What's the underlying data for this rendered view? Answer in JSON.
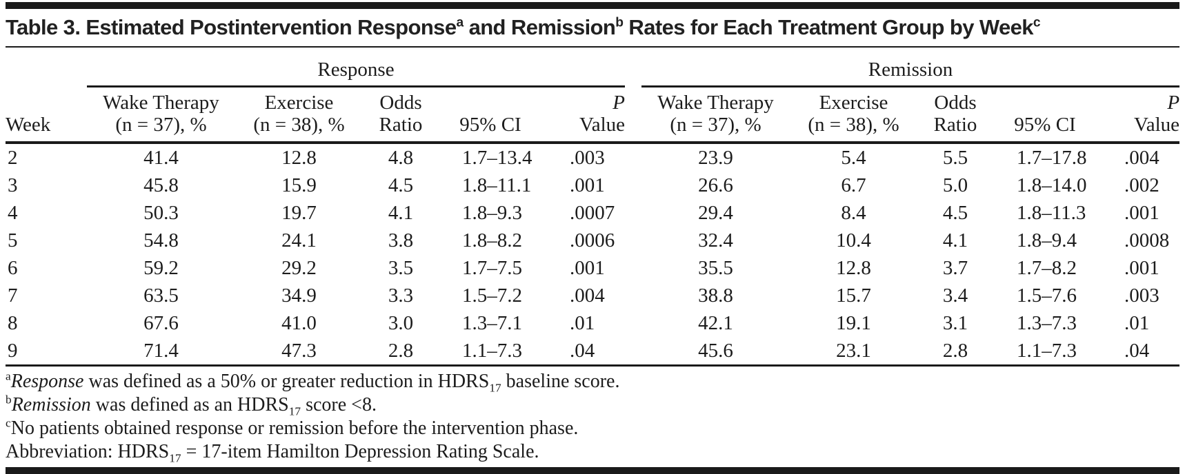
{
  "title": {
    "part1": "Table 3. Estimated Postintervention Response",
    "sup1": "a",
    "part2": " and Remission",
    "sup2": "b",
    "part3": " Rates for Each Treatment Group by Week",
    "sup3": "c"
  },
  "table": {
    "spanners": {
      "response": "Response",
      "remission": "Remission"
    },
    "week_label": "Week",
    "subheaders": {
      "wake_line1": "Wake Therapy",
      "wake_line2": "(n = 37), %",
      "exercise_line1": "Exercise",
      "exercise_line2": "(n = 38), %",
      "odds_line1": "Odds",
      "odds_line2": "Ratio",
      "ci": "95% CI",
      "p_line1": "P",
      "p_line2": "Value"
    },
    "rows": [
      [
        "2",
        "41.4",
        "12.8",
        "4.8",
        "1.7–13.4",
        ".003",
        "23.9",
        "5.4",
        "5.5",
        "1.7–17.8",
        ".004"
      ],
      [
        "3",
        "45.8",
        "15.9",
        "4.5",
        "1.8–11.1",
        ".001",
        "26.6",
        "6.7",
        "5.0",
        "1.8–14.0",
        ".002"
      ],
      [
        "4",
        "50.3",
        "19.7",
        "4.1",
        "1.8–9.3",
        ".0007",
        "29.4",
        "8.4",
        "4.5",
        "1.8–11.3",
        ".001"
      ],
      [
        "5",
        "54.8",
        "24.1",
        "3.8",
        "1.8–8.2",
        ".0006",
        "32.4",
        "10.4",
        "4.1",
        "1.8–9.4",
        ".0008"
      ],
      [
        "6",
        "59.2",
        "29.2",
        "3.5",
        "1.7–7.5",
        ".001",
        "35.5",
        "12.8",
        "3.7",
        "1.7–8.2",
        ".001"
      ],
      [
        "7",
        "63.5",
        "34.9",
        "3.3",
        "1.5–7.2",
        ".004",
        "38.8",
        "15.7",
        "3.4",
        "1.5–7.6",
        ".003"
      ],
      [
        "8",
        "67.6",
        "41.0",
        "3.0",
        "1.3–7.1",
        ".01",
        "42.1",
        "19.1",
        "3.1",
        "1.3–7.3",
        ".01"
      ],
      [
        "9",
        "71.4",
        "47.3",
        "2.8",
        "1.1–7.3",
        ".04",
        "45.6",
        "23.1",
        "2.8",
        "1.1–7.3",
        ".04"
      ]
    ]
  },
  "footnotes": {
    "a": {
      "marker": "a",
      "term": "Response",
      "text1": " was defined as a 50% or greater reduction in HDRS",
      "sub": "17",
      "text2": " baseline score."
    },
    "b": {
      "marker": "b",
      "term": "Remission",
      "text1": " was defined as an HDRS",
      "sub": "17",
      "text2": " score <8."
    },
    "c": {
      "marker": "c",
      "text": "No patients obtained response or remission before the intervention phase."
    },
    "abbrev": {
      "text1": "Abbreviation: HDRS",
      "sub": "17",
      "text2": " = 17-item Hamilton Depression Rating Scale."
    }
  },
  "colors": {
    "text": "#1c1c1c",
    "rule": "#1a1a1a",
    "background": "#ffffff"
  }
}
